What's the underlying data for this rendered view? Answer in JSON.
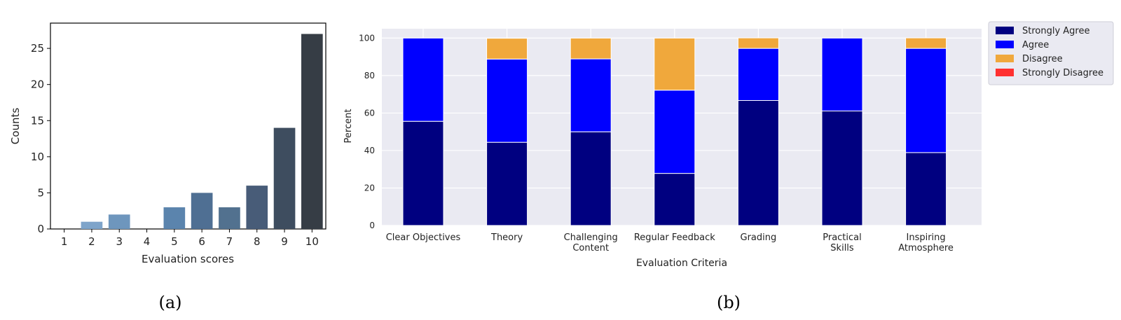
{
  "chart_data": [
    {
      "type": "bar",
      "caption": "(a)",
      "xlabel": "Evaluation scores",
      "ylabel": "Counts",
      "categories": [
        "1",
        "2",
        "3",
        "4",
        "5",
        "6",
        "7",
        "8",
        "9",
        "10"
      ],
      "values": [
        0,
        1,
        2,
        0,
        3,
        5,
        3,
        6,
        14,
        27
      ],
      "colors": [
        "#8fb4d9",
        "#7ea4ca",
        "#6e96bd",
        "#6488b0",
        "#5b84ad",
        "#4f6f93",
        "#52718f",
        "#485c78",
        "#3e4d5f",
        "#363d45"
      ],
      "ylim": [
        0,
        28.5
      ],
      "yticks": [
        0,
        5,
        10,
        15,
        20,
        25
      ],
      "grid": false
    },
    {
      "type": "bar",
      "stacked": true,
      "caption": "(b)",
      "xlabel": "Evaluation Criteria",
      "ylabel": "Percent",
      "categories": [
        [
          "Clear Objectives"
        ],
        [
          "Theory"
        ],
        [
          "Challenging",
          "Content"
        ],
        [
          "Regular Feedback"
        ],
        [
          "Grading"
        ],
        [
          "Practical",
          "Skills"
        ],
        [
          "Inspiring",
          "Atmosphere"
        ]
      ],
      "series": [
        {
          "name": "Strongly Agree",
          "color": "#000080",
          "values": [
            55.6,
            44.4,
            50.0,
            27.8,
            66.7,
            61.1,
            38.9
          ]
        },
        {
          "name": "Agree",
          "color": "#0000ff",
          "values": [
            44.4,
            44.4,
            38.9,
            44.4,
            27.8,
            38.9,
            55.6
          ]
        },
        {
          "name": "Disagree",
          "color": "#f0a83c",
          "values": [
            0,
            11.1,
            11.1,
            27.8,
            5.6,
            0,
            5.6
          ]
        },
        {
          "name": "Strongly Disagree",
          "color": "#ff3030",
          "values": [
            0,
            0,
            0,
            0,
            0,
            0,
            0
          ]
        }
      ],
      "ylim": [
        0,
        105
      ],
      "yticks": [
        0,
        20,
        40,
        60,
        80,
        100
      ],
      "grid": true,
      "legend_position": "outside-top-right"
    }
  ]
}
